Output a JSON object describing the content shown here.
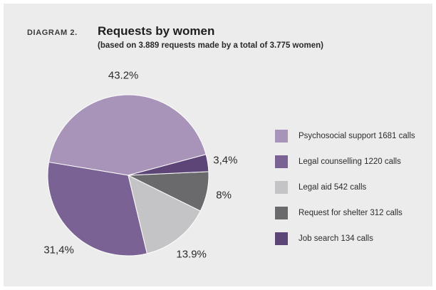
{
  "header": {
    "figure_label": "DIAGRAM 2.",
    "title": "Requests by women",
    "subtitle": "(based on 3.889 requests made by a total of 3.775 women)"
  },
  "chart_data": {
    "type": "pie",
    "title": "Requests by women",
    "subtitle": "(based on 3.889 requests made by a total of 3.775 women)",
    "slices": [
      {
        "legend": "Psychosocial support 1681 calls",
        "value": 1681,
        "pct_label": "43.2%",
        "color": "#a794b8"
      },
      {
        "legend": "Legal counselling 1220 calls",
        "value": 1220,
        "pct_label": "31,4%",
        "color": "#7a6394"
      },
      {
        "legend": "Legal aid 542 calls",
        "value": 542,
        "pct_label": "13.9%",
        "color": "#c4c4c6"
      },
      {
        "legend": "Request for shelter 312 calls",
        "value": 312,
        "pct_label": "8%",
        "color": "#6a6a6c"
      },
      {
        "legend": "Job search 134 calls",
        "value": 134,
        "pct_label": "3,4%",
        "color": "#5d4677"
      }
    ],
    "legend_position": "right"
  }
}
